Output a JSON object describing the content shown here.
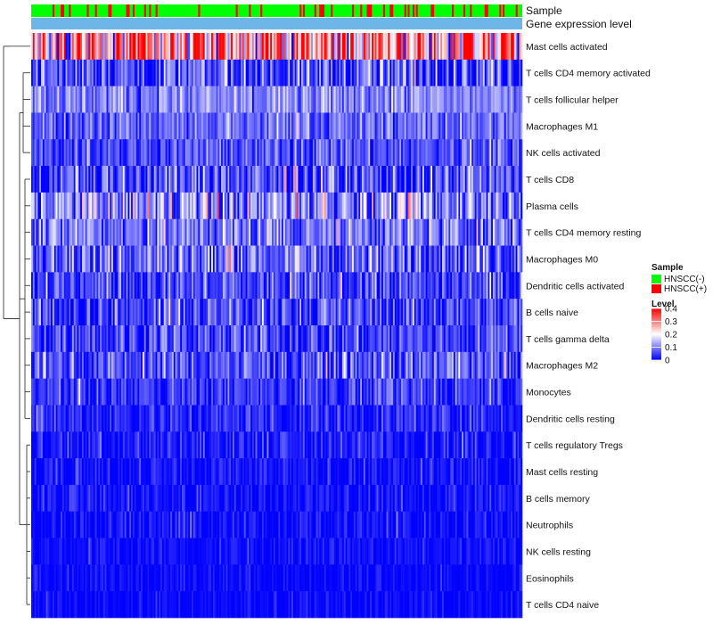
{
  "chart_data": {
    "type": "heatmap",
    "title": "",
    "annotation_tracks": [
      {
        "name": "Sample",
        "label": "Sample"
      },
      {
        "name": "Gene expression level",
        "label": "Gene expression level"
      }
    ],
    "rows": [
      {
        "name": "Mast cells activated",
        "mean": 0.26,
        "spread": 0.16
      },
      {
        "name": "T cells CD4 memory activated",
        "mean": 0.06,
        "spread": 0.08
      },
      {
        "name": "T cells follicular helper",
        "mean": 0.1,
        "spread": 0.05
      },
      {
        "name": "Macrophages M1",
        "mean": 0.08,
        "spread": 0.05
      },
      {
        "name": "NK cells activated",
        "mean": 0.06,
        "spread": 0.05
      },
      {
        "name": "T cells CD8",
        "mean": 0.05,
        "spread": 0.08
      },
      {
        "name": "Plasma cells",
        "mean": 0.1,
        "spread": 0.09
      },
      {
        "name": "T cells CD4 memory resting",
        "mean": 0.09,
        "spread": 0.07
      },
      {
        "name": "Macrophages M0",
        "mean": 0.08,
        "spread": 0.08
      },
      {
        "name": "Dendritic cells activated",
        "mean": 0.05,
        "spread": 0.06
      },
      {
        "name": "B cells naive",
        "mean": 0.05,
        "spread": 0.06
      },
      {
        "name": "T cells gamma delta",
        "mean": 0.05,
        "spread": 0.06
      },
      {
        "name": "Macrophages M2",
        "mean": 0.06,
        "spread": 0.06
      },
      {
        "name": "Monocytes",
        "mean": 0.04,
        "spread": 0.04
      },
      {
        "name": "Dendritic cells resting",
        "mean": 0.03,
        "spread": 0.04
      },
      {
        "name": "T cells regulatory  Tregs",
        "mean": 0.02,
        "spread": 0.04
      },
      {
        "name": "Mast cells resting",
        "mean": 0.01,
        "spread": 0.03
      },
      {
        "name": "B cells memory",
        "mean": 0.01,
        "spread": 0.03
      },
      {
        "name": "Neutrophils",
        "mean": 0.01,
        "spread": 0.03
      },
      {
        "name": "NK cells resting",
        "mean": 0.01,
        "spread": 0.02
      },
      {
        "name": "Eosinophils",
        "mean": 0.005,
        "spread": 0.02
      },
      {
        "name": "T cells CD4 naive",
        "mean": 0.005,
        "spread": 0.02
      }
    ],
    "n_samples": 300,
    "positive_fraction": 0.18,
    "color_scale": {
      "min": 0,
      "max": 0.4,
      "colors": [
        "#0000ff",
        "#ffffff",
        "#ff0000"
      ],
      "ticks": [
        0.4,
        0.3,
        0.2,
        0.1,
        0
      ]
    },
    "legend": {
      "position": "right",
      "sample_title": "Sample",
      "sample_entries": [
        {
          "label": "HNSCC(-)",
          "color": "#00ff00"
        },
        {
          "label": "HNSCC(+)",
          "color": "#ff0000"
        }
      ],
      "level_title": "Level",
      "tick_labels": [
        "0.4",
        "0.3",
        "0.2",
        "0.1",
        "0"
      ]
    },
    "expression_track_color": "#6fb6e8"
  }
}
